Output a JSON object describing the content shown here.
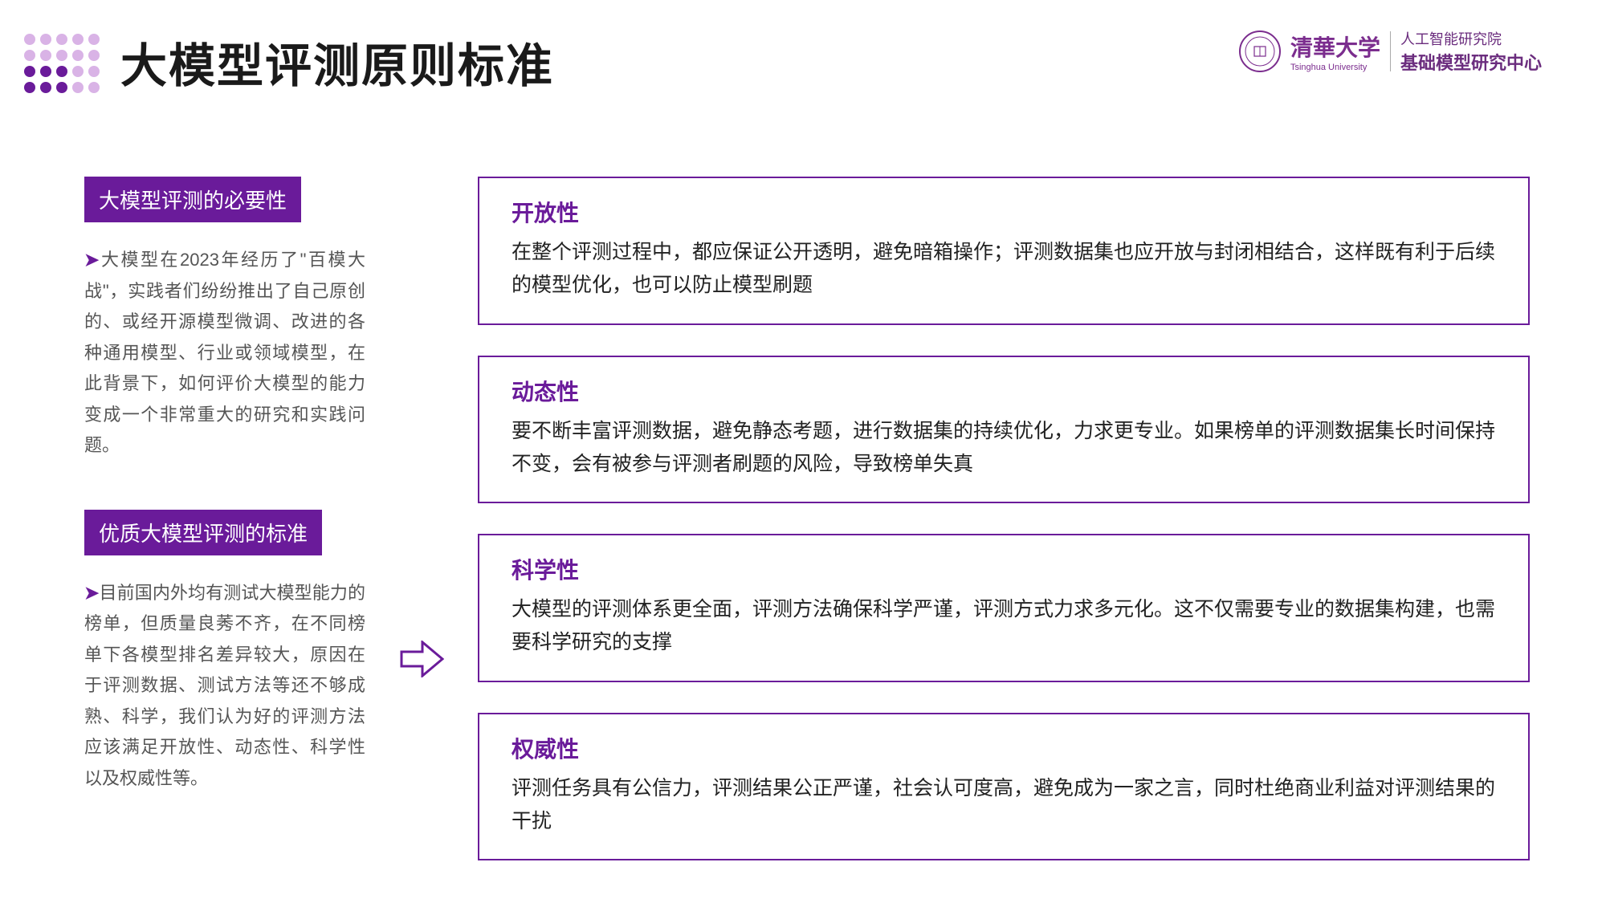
{
  "colors": {
    "dot_light": "#d9b3e6",
    "dot_dark": "#6a1b9a",
    "accent": "#6a1b9a",
    "box_border": "#6a1b9a",
    "title_color": "#1a1a1a",
    "body_text": "#555555",
    "principle_body": "#222222",
    "logo_purple": "#7b2d8e"
  },
  "title": "大模型评测原则标准",
  "logo": {
    "uni_cn": "清華大学",
    "uni_en": "Tsinghua University",
    "right_top": "人工智能研究院",
    "right_bottom": "基础模型研究中心"
  },
  "left": {
    "section1": {
      "header": "大模型评测的必要性",
      "body": "大模型在2023年经历了\"百模大战\"，实践者们纷纷推出了自己原创的、或经开源模型微调、改进的各种通用模型、行业或领域模型，在此背景下，如何评价大模型的能力变成一个非常重大的研究和实践问题。"
    },
    "section2": {
      "header": "优质大模型评测的标准",
      "body": "目前国内外均有测试大模型能力的榜单，但质量良莠不齐，在不同榜单下各模型排名差异较大，原因在于评测数据、测试方法等还不够成熟、科学，我们认为好的评测方法应该满足开放性、动态性、科学性以及权威性等。"
    }
  },
  "principles": [
    {
      "title": "开放性",
      "body": "在整个评测过程中，都应保证公开透明，避免暗箱操作；评测数据集也应开放与封闭相结合，这样既有利于后续的模型优化，也可以防止模型刷题"
    },
    {
      "title": "动态性",
      "body": "要不断丰富评测数据，避免静态考题，进行数据集的持续优化，力求更专业。如果榜单的评测数据集长时间保持不变，会有被参与评测者刷题的风险，导致榜单失真"
    },
    {
      "title": "科学性",
      "body": "大模型的评测体系更全面，评测方法确保科学严谨，评测方式力求多元化。这不仅需要专业的数据集构建，也需要科学研究的支撑"
    },
    {
      "title": "权威性",
      "body": "评测任务具有公信力，评测结果公正严谨，社会认可度高，避免成为一家之言，同时杜绝商业利益对评测结果的干扰"
    }
  ],
  "dot_pattern": [
    [
      "l",
      "l",
      "l",
      "l",
      "l"
    ],
    [
      "l",
      "l",
      "l",
      "l",
      "l"
    ],
    [
      "d",
      "d",
      "d",
      "l",
      "l"
    ],
    [
      "d",
      "d",
      "d",
      "l",
      "l"
    ]
  ]
}
